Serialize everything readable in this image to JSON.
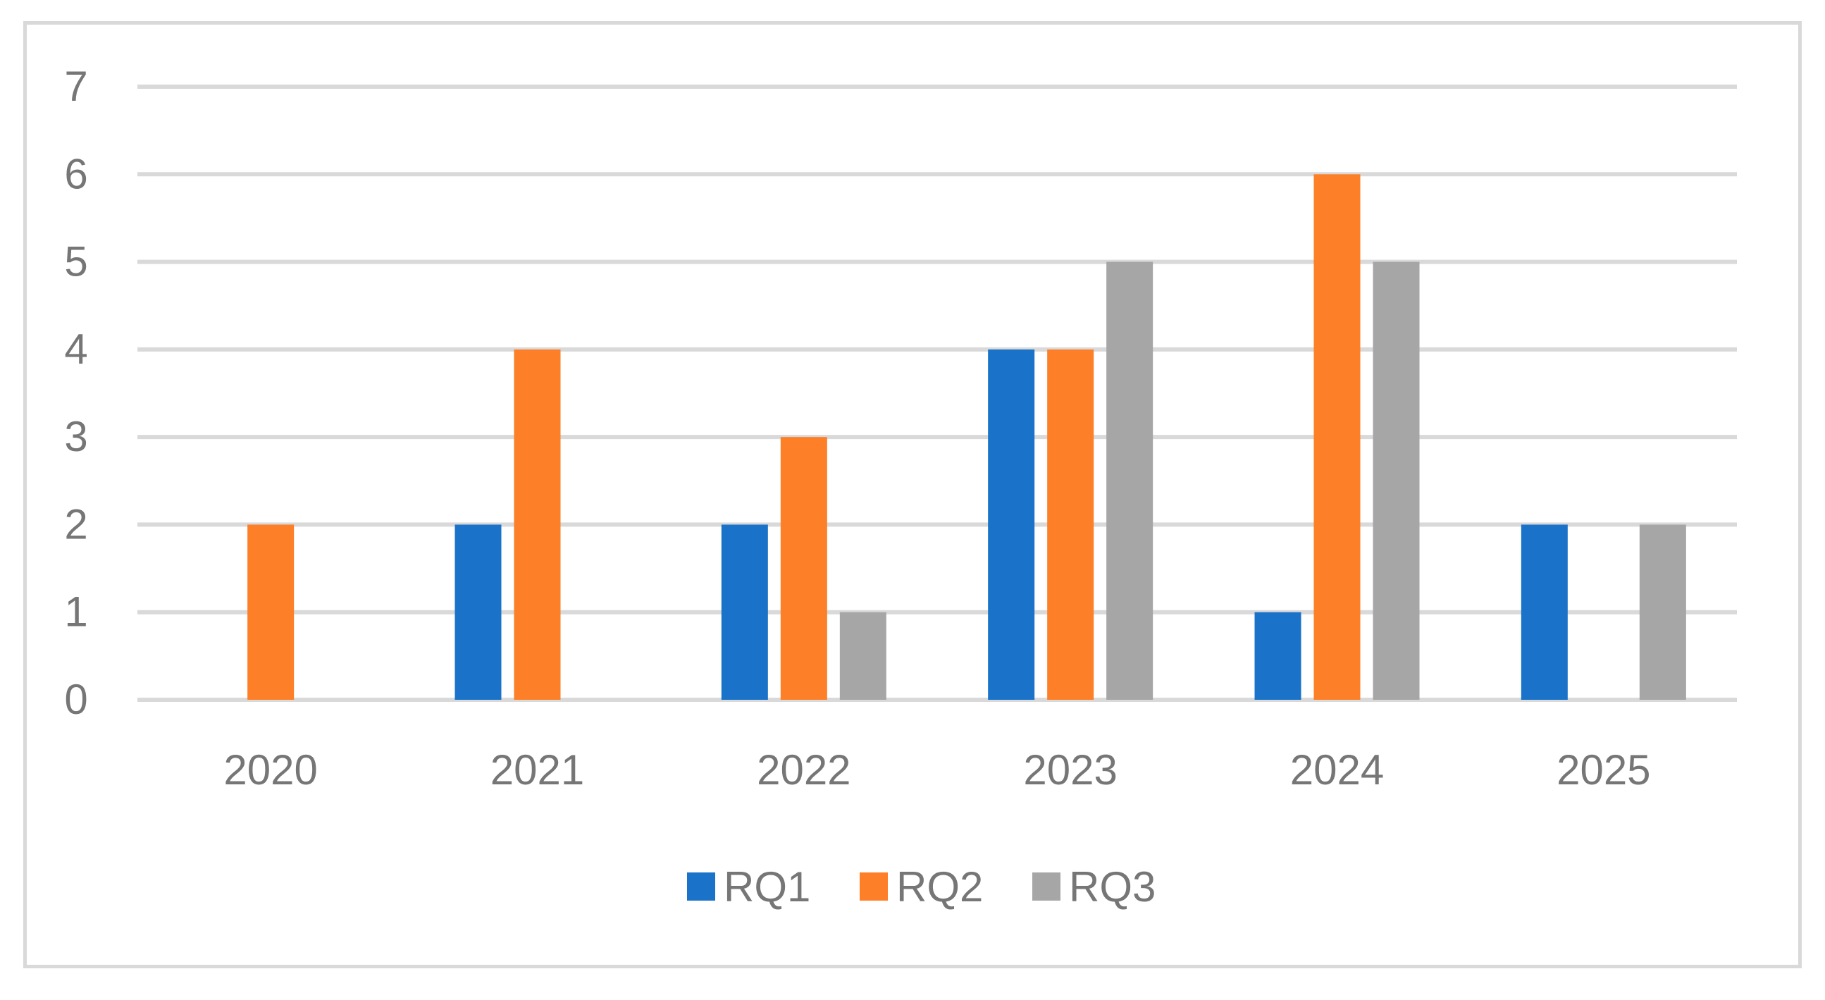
{
  "chart_data": {
    "type": "bar",
    "title": "",
    "xlabel": "",
    "ylabel": "",
    "categories": [
      "2020",
      "2021",
      "2022",
      "2023",
      "2024",
      "2025"
    ],
    "series": [
      {
        "name": "RQ1",
        "color": "#1a73c8",
        "values": [
          0,
          2,
          2,
          4,
          1,
          2
        ]
      },
      {
        "name": "RQ2",
        "color": "#fd7f27",
        "values": [
          2,
          4,
          3,
          4,
          6,
          0
        ]
      },
      {
        "name": "RQ3",
        "color": "#a6a6a6",
        "values": [
          0,
          0,
          1,
          5,
          5,
          2
        ]
      }
    ],
    "ylim": [
      0,
      7
    ],
    "yticks": [
      "0",
      "1",
      "2",
      "3",
      "4",
      "5",
      "6",
      "7"
    ],
    "grid": true,
    "legend_position": "bottom-center",
    "gridline_color": "#d9d9d9",
    "text_color": "#767676"
  }
}
